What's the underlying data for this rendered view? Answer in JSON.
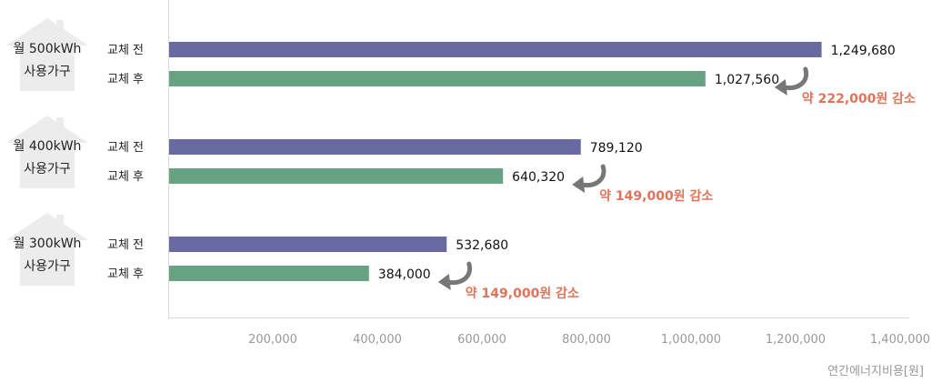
{
  "chart_data": {
    "type": "bar",
    "orientation": "horizontal",
    "colors": {
      "before": "#6a6aa3",
      "after": "#67a382",
      "savings": "#e0735a",
      "house_icon": "#ececec"
    },
    "x_unit_label": "연간에너지비용[원]",
    "xlim": [
      0,
      1400000
    ],
    "ticks": [
      "200,000",
      "400,000",
      "600,000",
      "800,000",
      "1,000,000",
      "1,200,000",
      "1,400,000"
    ],
    "tick_values": [
      200000,
      400000,
      600000,
      800000,
      1000000,
      1200000,
      1400000
    ],
    "groups": [
      {
        "line1": "월 500kWh",
        "line2": "사용가구",
        "bars": [
          {
            "label": "교체 전",
            "value": 1249680,
            "value_label": "1,249,680"
          },
          {
            "label": "교체 후",
            "value": 1027560,
            "value_label": "1,027,560"
          }
        ],
        "savings": "약 222,000원 감소"
      },
      {
        "line1": "월 400kWh",
        "line2": "사용가구",
        "bars": [
          {
            "label": "교체 전",
            "value": 789120,
            "value_label": "789,120"
          },
          {
            "label": "교체 후",
            "value": 640320,
            "value_label": "640,320"
          }
        ],
        "savings": "약 149,000원 감소"
      },
      {
        "line1": "월 300kWh",
        "line2": "사용가구",
        "bars": [
          {
            "label": "교체 전",
            "value": 532680,
            "value_label": "532,680"
          },
          {
            "label": "교체 후",
            "value": 384000,
            "value_label": "384,000"
          }
        ],
        "savings": "약 149,000원 감소"
      }
    ]
  }
}
